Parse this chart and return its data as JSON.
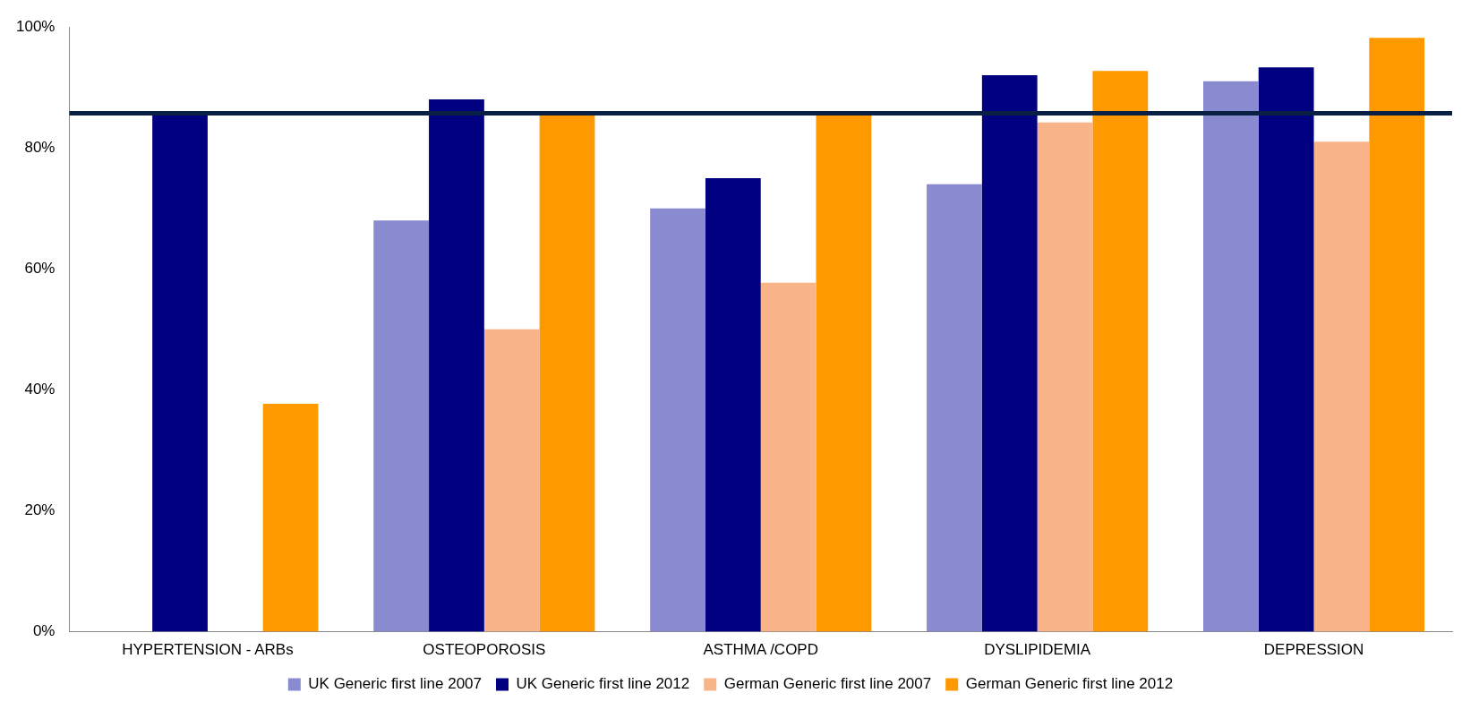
{
  "chart_data": {
    "type": "bar",
    "categories": [
      "HYPERTENSION - ARBs",
      "OSTEOPOROSIS",
      "ASTHMA /COPD",
      "DYSLIPIDEMIA",
      "DEPRESSION"
    ],
    "series": [
      {
        "name": "UK Generic first line 2007",
        "color": "#8a8ad0",
        "values": [
          null,
          68,
          70,
          74,
          91
        ]
      },
      {
        "name": "UK Generic first line 2012",
        "color": "#000080",
        "values": [
          85.5,
          88,
          75,
          92,
          93.3
        ]
      },
      {
        "name": "German Generic first line 2007",
        "color": "#f9b48a",
        "values": [
          null,
          50,
          57.7,
          84.2,
          81
        ]
      },
      {
        "name": "German Generic first line 2012",
        "color": "#ff9900",
        "values": [
          37.7,
          85.5,
          85.5,
          92.7,
          98.2
        ]
      }
    ],
    "ylim": [
      0,
      100
    ],
    "yticks": [
      {
        "value": 0,
        "label": "0%"
      },
      {
        "value": 20,
        "label": "20%"
      },
      {
        "value": 40,
        "label": "40%"
      },
      {
        "value": 60,
        "label": "60%"
      },
      {
        "value": 80,
        "label": "80%"
      },
      {
        "value": 100,
        "label": "100%"
      }
    ],
    "ref_lines": [
      {
        "axis": "y",
        "value": 85.7,
        "color": "#0a1f44"
      }
    ],
    "grid": false,
    "legend": "bottom"
  }
}
